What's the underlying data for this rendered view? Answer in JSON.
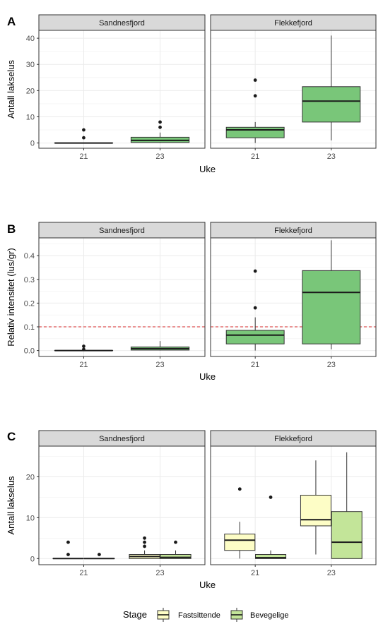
{
  "colors": {
    "green": "#79c679",
    "fast": "#fdfdc6",
    "beveg": "#c3e599",
    "strip": "#d9d9d9",
    "ref_line": "#d62728"
  },
  "chart_data": [
    {
      "type": "boxplot",
      "label": "A",
      "xlabel": "Uke",
      "ylabel": "Antall lakselus",
      "ylim": [
        -2,
        43
      ],
      "yticks": [
        0,
        10,
        20,
        30,
        40
      ],
      "categories": [
        "21",
        "23"
      ],
      "facets": [
        {
          "name": "Sandnesfjord",
          "boxes": [
            {
              "x": "21",
              "series": "",
              "min": 0,
              "q1": 0,
              "median": 0,
              "q3": 0,
              "max": 0,
              "outliers": [
                2,
                5
              ]
            },
            {
              "x": "23",
              "series": "",
              "min": 0,
              "q1": 0.2,
              "median": 1,
              "q3": 2.2,
              "max": 4,
              "outliers": [
                6,
                8
              ]
            }
          ]
        },
        {
          "name": "Flekkefjord",
          "boxes": [
            {
              "x": "21",
              "series": "",
              "min": 0,
              "q1": 2,
              "median": 5,
              "q3": 6,
              "max": 8,
              "outliers": [
                18,
                24
              ]
            },
            {
              "x": "23",
              "series": "",
              "min": 1,
              "q1": 8,
              "median": 16,
              "q3": 21.5,
              "max": 41,
              "outliers": []
            }
          ]
        }
      ]
    },
    {
      "type": "boxplot",
      "label": "B",
      "xlabel": "Uke",
      "ylabel": "Relativ intensitet (lus/gr)",
      "ylim": [
        -0.025,
        0.475
      ],
      "yticks": [
        0.0,
        0.1,
        0.2,
        0.3,
        0.4
      ],
      "ytick_labels": [
        "0.0",
        "0.1",
        "0.2",
        "0.3",
        "0.4"
      ],
      "reference_line": 0.1,
      "categories": [
        "21",
        "23"
      ],
      "facets": [
        {
          "name": "Sandnesfjord",
          "boxes": [
            {
              "x": "21",
              "series": "",
              "min": 0,
              "q1": 0,
              "median": 0,
              "q3": 0,
              "max": 0,
              "outliers": [
                0.005,
                0.018
              ]
            },
            {
              "x": "23",
              "series": "",
              "min": 0,
              "q1": 0.002,
              "median": 0.008,
              "q3": 0.015,
              "max": 0.04,
              "outliers": []
            }
          ]
        },
        {
          "name": "Flekkefjord",
          "boxes": [
            {
              "x": "21",
              "series": "",
              "min": 0,
              "q1": 0.028,
              "median": 0.065,
              "q3": 0.085,
              "max": 0.14,
              "outliers": [
                0.18,
                0.335
              ]
            },
            {
              "x": "23",
              "series": "",
              "min": 0.005,
              "q1": 0.028,
              "median": 0.245,
              "q3": 0.337,
              "max": 0.465,
              "outliers": []
            }
          ]
        }
      ]
    },
    {
      "type": "boxplot",
      "label": "C",
      "xlabel": "Uke",
      "ylabel": "Antall lakselus",
      "ylim": [
        -1.5,
        27.5
      ],
      "yticks": [
        0,
        10,
        20
      ],
      "categories": [
        "21",
        "23"
      ],
      "legend": {
        "title": "Stage",
        "position": "bottom",
        "entries": [
          {
            "name": "Fastsittende",
            "color": "#fdfdc6"
          },
          {
            "name": "Bevegelige",
            "color": "#c3e599"
          }
        ]
      },
      "facets": [
        {
          "name": "Sandnesfjord",
          "boxes": [
            {
              "x": "21",
              "series": "Fastsittende",
              "min": 0,
              "q1": 0,
              "median": 0,
              "q3": 0,
              "max": 0,
              "outliers": [
                1,
                4
              ]
            },
            {
              "x": "21",
              "series": "Bevegelige",
              "min": 0,
              "q1": 0,
              "median": 0,
              "q3": 0,
              "max": 0,
              "outliers": [
                1
              ]
            },
            {
              "x": "23",
              "series": "Fastsittende",
              "min": 0,
              "q1": 0,
              "median": 0.5,
              "q3": 1,
              "max": 2,
              "outliers": [
                3,
                4,
                5
              ]
            },
            {
              "x": "23",
              "series": "Bevegelige",
              "min": 0,
              "q1": 0,
              "median": 0.3,
              "q3": 1,
              "max": 2,
              "outliers": [
                4
              ]
            }
          ]
        },
        {
          "name": "Flekkefjord",
          "boxes": [
            {
              "x": "21",
              "series": "Fastsittende",
              "min": 0,
              "q1": 2,
              "median": 4.5,
              "q3": 6,
              "max": 9,
              "outliers": [
                17
              ]
            },
            {
              "x": "21",
              "series": "Bevegelige",
              "min": 0,
              "q1": 0,
              "median": 0.2,
              "q3": 1,
              "max": 2,
              "outliers": [
                15
              ]
            },
            {
              "x": "23",
              "series": "Fastsittende",
              "min": 1,
              "q1": 8,
              "median": 9.5,
              "q3": 15.5,
              "max": 24,
              "outliers": []
            },
            {
              "x": "23",
              "series": "Bevegelige",
              "min": 0,
              "q1": 0,
              "median": 4,
              "q3": 11.5,
              "max": 26,
              "outliers": []
            }
          ]
        }
      ]
    }
  ]
}
